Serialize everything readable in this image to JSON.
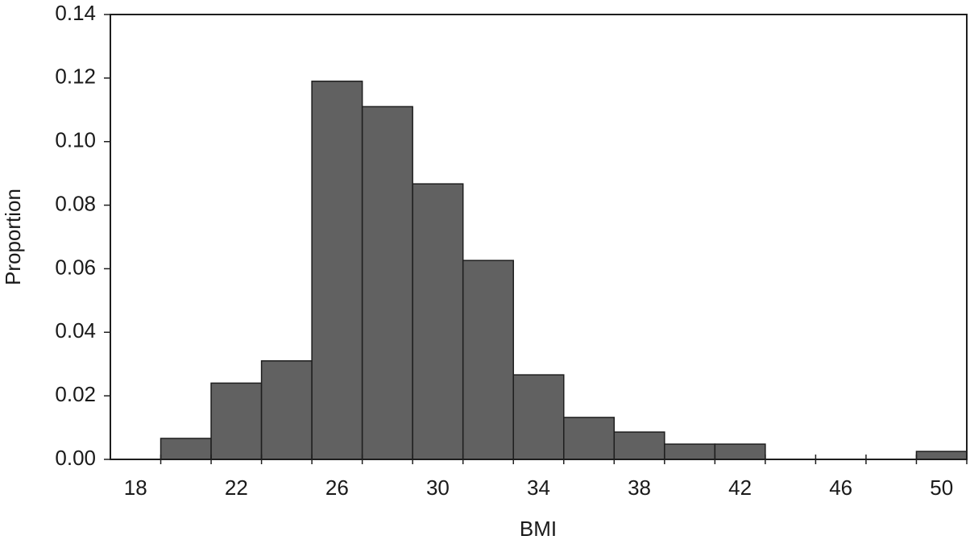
{
  "chart_data": {
    "type": "histogram",
    "xlabel": "BMI",
    "ylabel": "Proportion",
    "bins": [
      19,
      21,
      23,
      25,
      27,
      29,
      31,
      33,
      35,
      37,
      39,
      41,
      43,
      45,
      47,
      49,
      51
    ],
    "values": [
      0.0066,
      0.024,
      0.031,
      0.119,
      0.111,
      0.0867,
      0.0626,
      0.0266,
      0.0132,
      0.0086,
      0.0048,
      0.0048,
      0,
      0,
      0,
      0.0025
    ],
    "color": "#616161",
    "xlim": [
      17,
      51
    ],
    "xticks": [
      18,
      22,
      26,
      30,
      34,
      38,
      42,
      46,
      50
    ],
    "ylim": [
      0,
      0.14
    ],
    "yticks": [
      {
        "value": 0,
        "label": "0.00"
      },
      0.02,
      0.04,
      0.06,
      0.08,
      {
        "value": 0.1,
        "label": "0.10"
      },
      0.12,
      0.14
    ]
  }
}
